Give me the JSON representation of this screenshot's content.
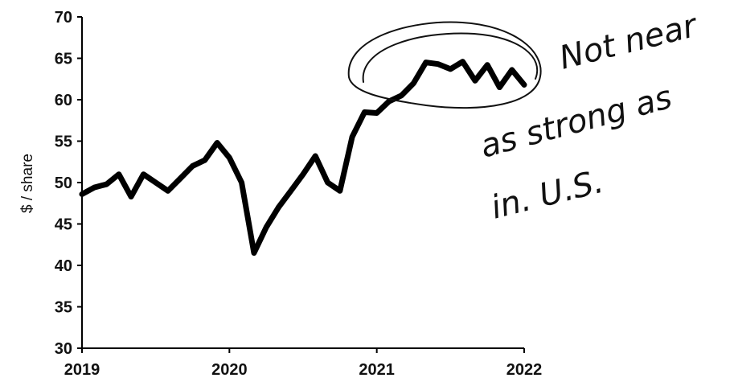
{
  "chart_data": {
    "type": "line",
    "title": "",
    "xlabel": "",
    "ylabel": "$ / share",
    "xlim": [
      2019.0,
      2022.0
    ],
    "ylim": [
      30,
      70
    ],
    "x_ticks": [
      2019,
      2020,
      2021,
      2022
    ],
    "x_tick_labels": [
      "2019",
      "2020",
      "2021",
      "2022"
    ],
    "y_ticks": [
      30,
      35,
      40,
      45,
      50,
      55,
      60,
      65,
      70
    ],
    "y_tick_labels": [
      "30",
      "35",
      "40",
      "45",
      "50",
      "55",
      "60",
      "65",
      "70"
    ],
    "grid": false,
    "series": [
      {
        "points": [
          [
            2019.0,
            48.6
          ],
          [
            2019.083,
            49.4
          ],
          [
            2019.167,
            49.8
          ],
          [
            2019.25,
            51.0
          ],
          [
            2019.333,
            48.3
          ],
          [
            2019.417,
            51.0
          ],
          [
            2019.5,
            50.0
          ],
          [
            2019.583,
            49.0
          ],
          [
            2019.667,
            50.5
          ],
          [
            2019.75,
            52.0
          ],
          [
            2019.833,
            52.7
          ],
          [
            2019.917,
            54.8
          ],
          [
            2020.0,
            53.0
          ],
          [
            2020.083,
            50.0
          ],
          [
            2020.167,
            41.5
          ],
          [
            2020.25,
            44.6
          ],
          [
            2020.333,
            47.0
          ],
          [
            2020.417,
            49.0
          ],
          [
            2020.5,
            51.0
          ],
          [
            2020.583,
            53.2
          ],
          [
            2020.667,
            50.0
          ],
          [
            2020.75,
            49.0
          ],
          [
            2020.833,
            55.5
          ],
          [
            2020.917,
            58.5
          ],
          [
            2021.0,
            58.4
          ],
          [
            2021.083,
            59.8
          ],
          [
            2021.167,
            60.5
          ],
          [
            2021.25,
            62.0
          ],
          [
            2021.333,
            64.5
          ],
          [
            2021.417,
            64.3
          ],
          [
            2021.5,
            63.7
          ],
          [
            2021.583,
            64.6
          ],
          [
            2021.667,
            62.3
          ],
          [
            2021.75,
            64.2
          ],
          [
            2021.833,
            61.5
          ],
          [
            2021.917,
            63.6
          ],
          [
            2022.0,
            61.8
          ]
        ]
      }
    ],
    "annotations": {
      "highlight_circle": "around the 2021 plateau",
      "handwritten_note_lines": [
        "Not near",
        "as strong as",
        "in. U.S."
      ]
    }
  }
}
